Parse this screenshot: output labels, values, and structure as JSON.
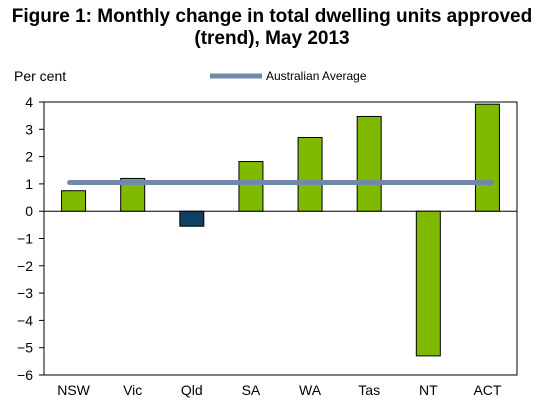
{
  "chart_data": {
    "type": "bar",
    "title_line1": "Figure 1: Monthly change in total dwelling units approved",
    "title_line2": "(trend), May 2013",
    "ylabel": "Per cent",
    "xlabel": "",
    "ylim": [
      -6,
      4
    ],
    "yticks": [
      4,
      3,
      2,
      1,
      0,
      -1,
      -2,
      -3,
      -4,
      -5,
      -6
    ],
    "categories": [
      "NSW",
      "Vic",
      "Qld",
      "SA",
      "WA",
      "Tas",
      "NT",
      "ACT"
    ],
    "series": [
      {
        "values": [
          0.75,
          1.2,
          -0.55,
          1.82,
          2.7,
          3.47,
          -5.3,
          3.92
        ],
        "colors": [
          "#7fba00",
          "#7fba00",
          "#0f3f63",
          "#7fba00",
          "#7fba00",
          "#7fba00",
          "#7fba00",
          "#7fba00"
        ]
      }
    ],
    "reference_line": {
      "name": "Australian Average",
      "value": 1.05,
      "color": "#6f89a8"
    },
    "grid": false,
    "legend_position": "top-right"
  }
}
